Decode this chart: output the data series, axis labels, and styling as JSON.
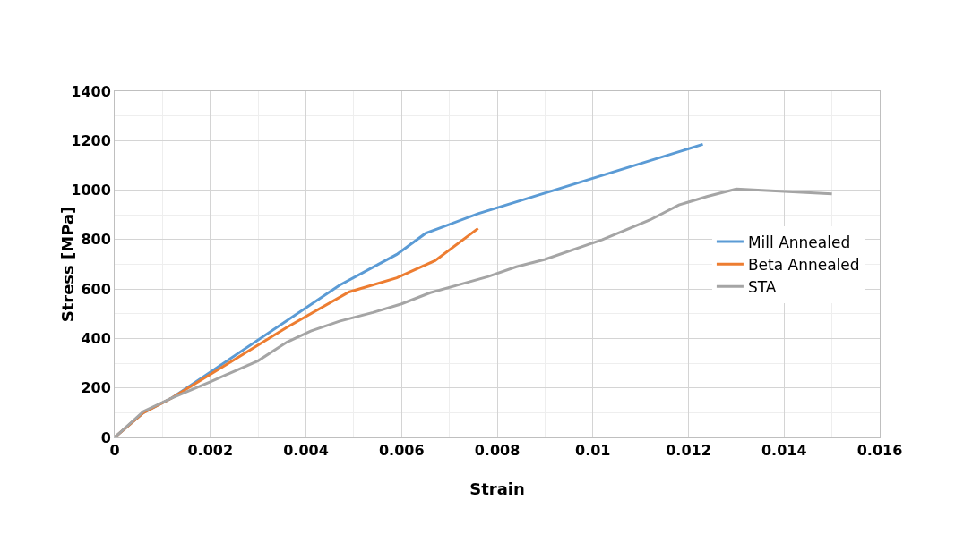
{
  "chart_data": {
    "type": "line",
    "xlabel": "Strain",
    "ylabel": "Stress [MPa]",
    "xlim": [
      0,
      0.016
    ],
    "xticks": [
      0,
      0.002,
      0.004,
      0.006,
      0.008,
      0.01,
      0.012,
      0.014,
      0.016
    ],
    "ylim": [
      0,
      1400
    ],
    "yticks": [
      0,
      200,
      400,
      600,
      800,
      1000,
      1200,
      1400
    ],
    "grid": true,
    "legend": "right",
    "marker": "none",
    "line_style": "solid",
    "series": [
      {
        "name": "Mill Annealed",
        "color": "#5b9bd5",
        "x": [
          0,
          0.0006,
          0.0012,
          0.0047,
          0.0059,
          0.0065,
          0.0076,
          0.0123
        ],
        "values": [
          0,
          100,
          160,
          615,
          740,
          825,
          905,
          1185
        ]
      },
      {
        "name": "Beta Annealed",
        "color": "#ed7d31",
        "x": [
          0,
          0.0006,
          0.0012,
          0.0036,
          0.0049,
          0.0059,
          0.0067,
          0.0076
        ],
        "values": [
          0,
          100,
          160,
          445,
          588,
          645,
          715,
          845
        ]
      },
      {
        "name": "STA",
        "color": "#a5a5a5",
        "x": [
          0,
          0.0006,
          0.0012,
          0.002,
          0.003,
          0.0036,
          0.0041,
          0.0047,
          0.0054,
          0.006,
          0.0066,
          0.0078,
          0.0084,
          0.009,
          0.0102,
          0.0112,
          0.0118,
          0.0124,
          0.013,
          0.015
        ],
        "values": [
          0,
          105,
          160,
          225,
          310,
          385,
          430,
          470,
          505,
          540,
          585,
          650,
          690,
          720,
          800,
          880,
          940,
          975,
          1005,
          985
        ]
      }
    ]
  }
}
